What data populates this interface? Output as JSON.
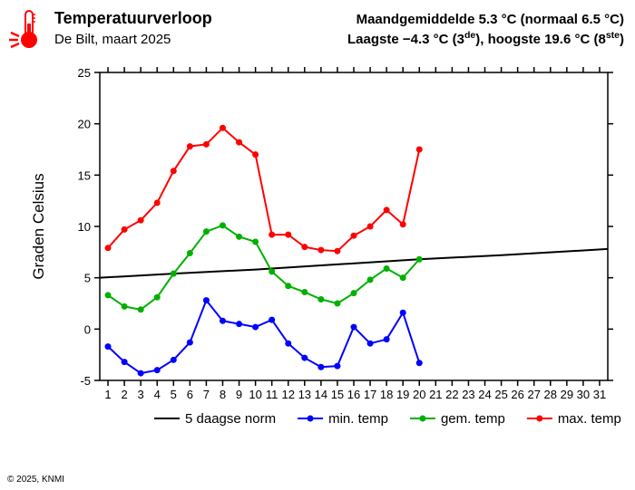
{
  "header": {
    "main_title": "Temperatuurverloop",
    "sub_title": "De Bilt, maart 2025",
    "right1_prefix": "Maandgemiddelde 5.3 ",
    "right1_mid": "C (normaal 6.5 ",
    "right1_end": "C)",
    "right2_prefix": "Laagste −4.3 ",
    "right2_mid1": "C (3",
    "right2_sup1": "de",
    "right2_mid2": "), hoogste 19.6 ",
    "right2_mid3": "C (8",
    "right2_sup2": "ste",
    "right2_end": ")",
    "deg": "°"
  },
  "copyright": "© 2025, KNMI",
  "chart": {
    "type": "line",
    "background_color": "#ffffff",
    "axis_color": "#000000",
    "grid_color": "#cccccc",
    "title_fontsize": 18,
    "label_fontsize": 14,
    "tick_fontsize": 13,
    "ylabel": "Graden Celsius",
    "xlim": [
      0.5,
      31.5
    ],
    "ylim": [
      -5,
      25
    ],
    "ytick_step": 5,
    "yticks": [
      -5,
      0,
      5,
      10,
      15,
      20,
      25
    ],
    "xticks": [
      1,
      2,
      3,
      4,
      5,
      6,
      7,
      8,
      9,
      10,
      11,
      12,
      13,
      14,
      15,
      16,
      17,
      18,
      19,
      20,
      21,
      22,
      23,
      24,
      25,
      26,
      27,
      28,
      29,
      30,
      31
    ],
    "legend": [
      {
        "label": "5 daagse norm",
        "color": "#000000",
        "marker": false
      },
      {
        "label": "min. temp",
        "color": "#0000ff",
        "marker": true
      },
      {
        "label": "gem. temp",
        "color": "#00b000",
        "marker": true
      },
      {
        "label": "max. temp",
        "color": "#ff0000",
        "marker": true
      }
    ],
    "line_width": 2,
    "marker_radius": 3.5,
    "series": {
      "norm": {
        "color": "#000000",
        "x": [
          0.5,
          5,
          10,
          15,
          20,
          25,
          31.5
        ],
        "y": [
          5.0,
          5.4,
          5.8,
          6.3,
          6.8,
          7.2,
          7.8
        ]
      },
      "min": {
        "color": "#0000ff",
        "x": [
          1,
          2,
          3,
          4,
          5,
          6,
          7,
          8,
          9,
          10,
          11,
          12,
          13,
          14,
          15,
          16,
          17,
          18,
          19,
          20
        ],
        "y": [
          -1.7,
          -3.2,
          -4.3,
          -4.0,
          -3.0,
          -1.3,
          2.8,
          0.8,
          0.5,
          0.2,
          0.9,
          -1.4,
          -2.8,
          -3.7,
          -3.6,
          0.2,
          -1.4,
          -1.0,
          1.6,
          -3.3
        ]
      },
      "gem": {
        "color": "#00b000",
        "x": [
          1,
          2,
          3,
          4,
          5,
          6,
          7,
          8,
          9,
          10,
          11,
          12,
          13,
          14,
          15,
          16,
          17,
          18,
          19,
          20
        ],
        "y": [
          3.3,
          2.2,
          1.9,
          3.1,
          5.4,
          7.4,
          9.5,
          10.1,
          9.0,
          8.5,
          5.6,
          4.2,
          3.6,
          2.9,
          2.5,
          3.5,
          4.8,
          5.9,
          5.0,
          6.8
        ]
      },
      "max": {
        "color": "#ff0000",
        "x": [
          1,
          2,
          3,
          4,
          5,
          6,
          7,
          8,
          9,
          10,
          11,
          12,
          13,
          14,
          15,
          16,
          17,
          18,
          19,
          20
        ],
        "y": [
          7.9,
          9.7,
          10.6,
          12.3,
          15.4,
          17.8,
          18.0,
          19.6,
          18.2,
          17.0,
          9.2,
          9.2,
          8.0,
          7.7,
          7.6,
          9.1,
          10.0,
          11.6,
          10.2,
          17.5
        ]
      }
    }
  }
}
